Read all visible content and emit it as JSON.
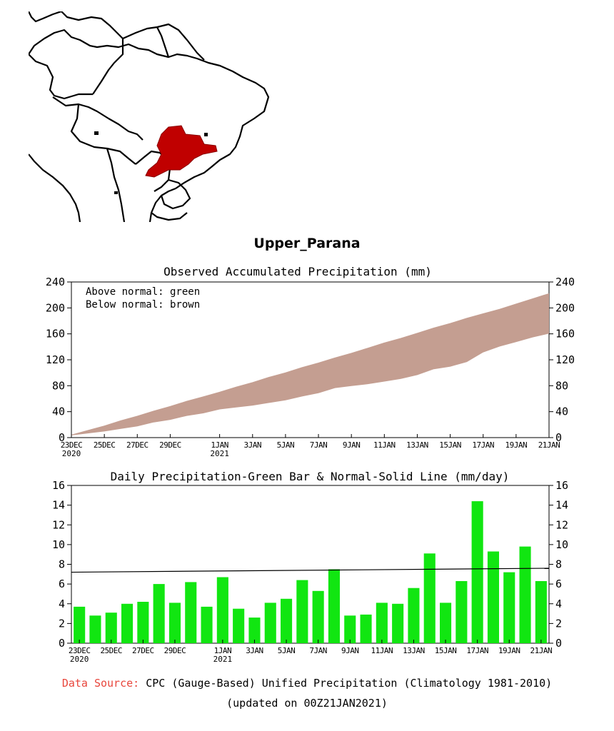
{
  "region": {
    "title": "Upper_Parana"
  },
  "map": {
    "country_color": "#000000",
    "region_color": "#c00000"
  },
  "accumulated": {
    "title": "Observed Accumulated Precipitation (mm)",
    "legend": [
      "Above normal: green",
      "Below normal: brown"
    ],
    "colors": {
      "below": "#c49e91",
      "above": "#33cc33"
    }
  },
  "daily": {
    "title": "Daily Precipitation-Green Bar & Normal-Solid Line (mm/day)",
    "bar_color": "#11e611"
  },
  "footer": {
    "source_label": "Data Source:",
    "source_text": "CPC (Gauge-Based) Unified Precipitation (Climatology 1981-2010)",
    "updated": "(updated on 00Z21JAN2021)"
  },
  "chart_data": [
    {
      "type": "area",
      "title": "Observed Accumulated Precipitation (mm)",
      "ylabel": "mm",
      "ylim": [
        0,
        240
      ],
      "yticks": [
        0,
        40,
        80,
        120,
        160,
        200,
        240
      ],
      "day_count": 29,
      "x_ticks": [
        {
          "day": 0,
          "label": "23DEC",
          "sub": "2020"
        },
        {
          "day": 2,
          "label": "25DEC",
          "sub": ""
        },
        {
          "day": 4,
          "label": "27DEC",
          "sub": ""
        },
        {
          "day": 6,
          "label": "29DEC",
          "sub": ""
        },
        {
          "day": 9,
          "label": "1JAN",
          "sub": "2021"
        },
        {
          "day": 11,
          "label": "3JAN",
          "sub": ""
        },
        {
          "day": 13,
          "label": "5JAN",
          "sub": ""
        },
        {
          "day": 15,
          "label": "7JAN",
          "sub": ""
        },
        {
          "day": 17,
          "label": "9JAN",
          "sub": ""
        },
        {
          "day": 19,
          "label": "11JAN",
          "sub": ""
        },
        {
          "day": 21,
          "label": "13JAN",
          "sub": ""
        },
        {
          "day": 23,
          "label": "15JAN",
          "sub": ""
        },
        {
          "day": 25,
          "label": "17JAN",
          "sub": ""
        },
        {
          "day": 27,
          "label": "19JAN",
          "sub": ""
        },
        {
          "day": 29,
          "label": "21JAN",
          "sub": ""
        }
      ],
      "series": [
        {
          "name": "Observed",
          "values": [
            4,
            7,
            10,
            14,
            18,
            24,
            28,
            34,
            38,
            44,
            47,
            50,
            54,
            58,
            64,
            69,
            77,
            80,
            83,
            87,
            91,
            97,
            106,
            110,
            117,
            132,
            141,
            148,
            155,
            161
          ]
        },
        {
          "name": "Normal",
          "values": [
            4,
            11,
            18,
            26,
            33,
            41,
            48,
            56,
            63,
            70,
            78,
            85,
            93,
            100,
            108,
            115,
            123,
            130,
            138,
            146,
            153,
            161,
            169,
            176,
            184,
            191,
            198,
            206,
            214,
            222
          ]
        }
      ]
    },
    {
      "type": "bar",
      "title": "Daily Precipitation-Green Bar & Normal-Solid Line (mm/day)",
      "ylabel": "mm/day",
      "ylim": [
        0,
        16
      ],
      "yticks": [
        0,
        2,
        4,
        6,
        8,
        10,
        12,
        14,
        16
      ],
      "categories": [
        "23DEC",
        "24DEC",
        "25DEC",
        "26DEC",
        "27DEC",
        "28DEC",
        "29DEC",
        "30DEC",
        "31DEC",
        "1JAN",
        "2JAN",
        "3JAN",
        "4JAN",
        "5JAN",
        "6JAN",
        "7JAN",
        "8JAN",
        "9JAN",
        "10JAN",
        "11JAN",
        "12JAN",
        "13JAN",
        "14JAN",
        "15JAN",
        "16JAN",
        "17JAN",
        "18JAN",
        "19JAN",
        "20JAN",
        "21JAN"
      ],
      "values": [
        3.7,
        2.8,
        3.1,
        4.0,
        4.2,
        6.0,
        4.1,
        6.2,
        3.7,
        6.7,
        3.5,
        2.6,
        4.1,
        4.5,
        6.4,
        5.3,
        7.5,
        2.8,
        2.9,
        4.1,
        4.0,
        5.6,
        9.1,
        4.1,
        6.3,
        14.4,
        9.3,
        7.2,
        9.8,
        6.3
      ],
      "normal_line": {
        "start": 7.2,
        "end": 7.6
      },
      "x_ticks": [
        {
          "index": 0,
          "label": "23DEC",
          "sub": "2020"
        },
        {
          "index": 2,
          "label": "25DEC",
          "sub": ""
        },
        {
          "index": 4,
          "label": "27DEC",
          "sub": ""
        },
        {
          "index": 6,
          "label": "29DEC",
          "sub": ""
        },
        {
          "index": 9,
          "label": "1JAN",
          "sub": "2021"
        },
        {
          "index": 11,
          "label": "3JAN",
          "sub": ""
        },
        {
          "index": 13,
          "label": "5JAN",
          "sub": ""
        },
        {
          "index": 15,
          "label": "7JAN",
          "sub": ""
        },
        {
          "index": 17,
          "label": "9JAN",
          "sub": ""
        },
        {
          "index": 19,
          "label": "11JAN",
          "sub": ""
        },
        {
          "index": 21,
          "label": "13JAN",
          "sub": ""
        },
        {
          "index": 23,
          "label": "15JAN",
          "sub": ""
        },
        {
          "index": 25,
          "label": "17JAN",
          "sub": ""
        },
        {
          "index": 27,
          "label": "19JAN",
          "sub": ""
        },
        {
          "index": 29,
          "label": "21JAN",
          "sub": ""
        }
      ]
    }
  ]
}
